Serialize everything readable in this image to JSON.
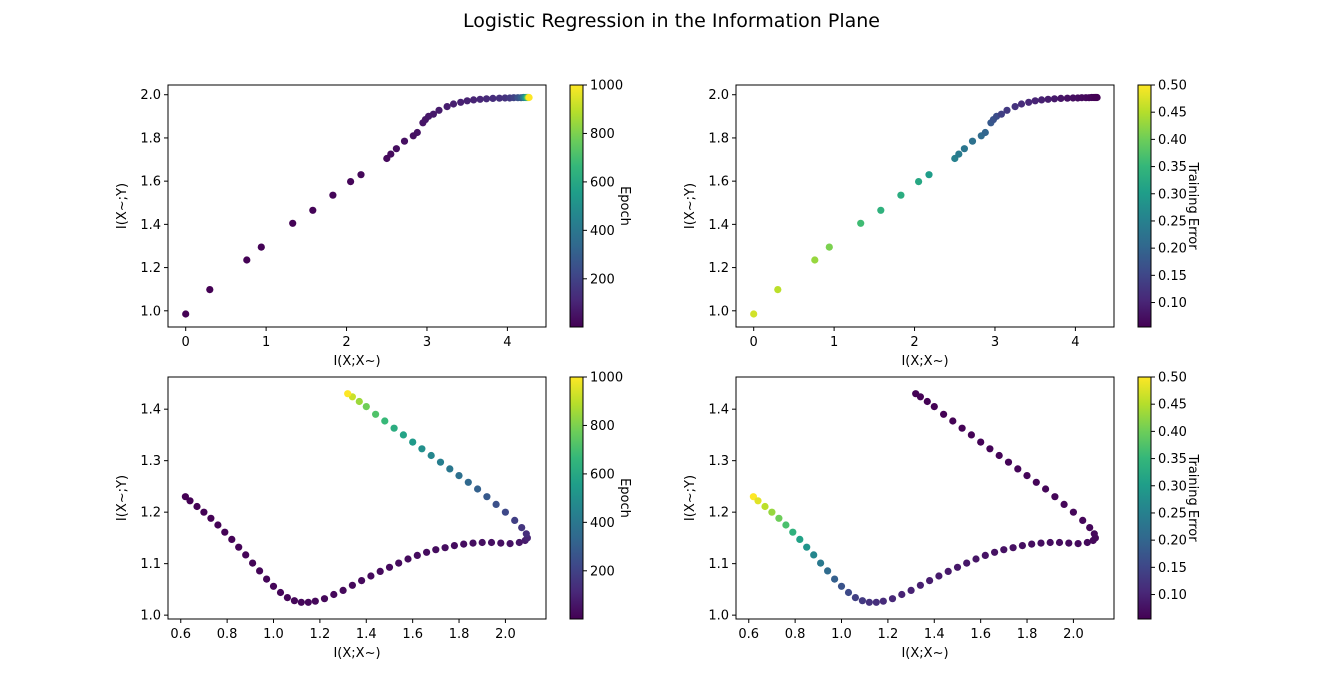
{
  "figure": {
    "title": "Logistic Regression in the Information Plane"
  },
  "colormap": {
    "name": "viridis",
    "stops": [
      "#440154",
      "#482878",
      "#3e4989",
      "#31688e",
      "#26828e",
      "#1f9e89",
      "#35b779",
      "#6ece58",
      "#b5de2b",
      "#fde725"
    ]
  },
  "chart_data": [
    {
      "type": "scatter",
      "xlabel": "I(X;X~)",
      "ylabel": "I(X~;Y)",
      "xlim": [
        -0.22,
        4.48
      ],
      "ylim": [
        0.925,
        2.045
      ],
      "xticks": [
        0,
        1,
        2,
        3,
        4
      ],
      "yticks": [
        1.0,
        1.2,
        1.4,
        1.6,
        1.8,
        2.0
      ],
      "colorbar": {
        "label": "Epoch",
        "range": [
          1,
          1000
        ],
        "ticks": [
          200,
          400,
          600,
          800,
          1000
        ]
      },
      "color_by": "epoch",
      "points": {
        "x": [
          0.0,
          0.3,
          0.76,
          0.94,
          1.33,
          1.58,
          1.83,
          2.05,
          2.18,
          2.5,
          2.55,
          2.62,
          2.72,
          2.83,
          2.88,
          2.95,
          2.98,
          3.02,
          3.08,
          3.15,
          3.25,
          3.33,
          3.42,
          3.5,
          3.58,
          3.66,
          3.74,
          3.82,
          3.9,
          3.97,
          4.03,
          4.08,
          4.13,
          4.17,
          4.2,
          4.22,
          4.24,
          4.25,
          4.26,
          4.27
        ],
        "y": [
          0.985,
          1.098,
          1.235,
          1.295,
          1.405,
          1.465,
          1.535,
          1.598,
          1.63,
          1.705,
          1.725,
          1.75,
          1.785,
          1.81,
          1.825,
          1.87,
          1.885,
          1.9,
          1.91,
          1.928,
          1.945,
          1.957,
          1.965,
          1.972,
          1.976,
          1.979,
          1.981,
          1.983,
          1.984,
          1.985,
          1.985,
          1.986,
          1.986,
          1.986,
          1.987,
          1.987,
          1.987,
          1.987,
          1.987,
          1.987
        ],
        "epoch": [
          1,
          2,
          4,
          6,
          8,
          10,
          13,
          16,
          20,
          25,
          30,
          35,
          40,
          45,
          50,
          55,
          60,
          65,
          70,
          75,
          80,
          85,
          90,
          95,
          100,
          110,
          120,
          130,
          140,
          150,
          170,
          200,
          250,
          300,
          400,
          500,
          600,
          700,
          850,
          1000
        ]
      }
    },
    {
      "type": "scatter",
      "xlabel": "I(X;X~)",
      "ylabel": "I(X~;Y)",
      "xlim": [
        -0.22,
        4.48
      ],
      "ylim": [
        0.925,
        2.045
      ],
      "xticks": [
        0,
        1,
        2,
        3,
        4
      ],
      "yticks": [
        1.0,
        1.2,
        1.4,
        1.6,
        1.8,
        2.0
      ],
      "colorbar": {
        "label": "Training Error",
        "range": [
          0.055,
          0.5
        ],
        "ticks": [
          0.1,
          0.15,
          0.2,
          0.25,
          0.3,
          0.35,
          0.4,
          0.45,
          0.5
        ]
      },
      "color_by": "training_error",
      "points": {
        "x": [
          0.0,
          0.3,
          0.76,
          0.94,
          1.33,
          1.58,
          1.83,
          2.05,
          2.18,
          2.5,
          2.55,
          2.62,
          2.72,
          2.83,
          2.88,
          2.95,
          2.98,
          3.02,
          3.08,
          3.15,
          3.25,
          3.33,
          3.42,
          3.5,
          3.58,
          3.66,
          3.74,
          3.82,
          3.9,
          3.97,
          4.03,
          4.08,
          4.13,
          4.17,
          4.2,
          4.22,
          4.24,
          4.25,
          4.26,
          4.27
        ],
        "y": [
          0.985,
          1.098,
          1.235,
          1.295,
          1.405,
          1.465,
          1.535,
          1.598,
          1.63,
          1.705,
          1.725,
          1.75,
          1.785,
          1.81,
          1.825,
          1.87,
          1.885,
          1.9,
          1.91,
          1.928,
          1.945,
          1.957,
          1.965,
          1.972,
          1.976,
          1.979,
          1.981,
          1.983,
          1.984,
          1.985,
          1.985,
          1.986,
          1.986,
          1.986,
          1.987,
          1.987,
          1.987,
          1.987,
          1.987,
          1.987
        ],
        "training_error": [
          0.47,
          0.455,
          0.43,
          0.41,
          0.36,
          0.34,
          0.33,
          0.32,
          0.3,
          0.25,
          0.24,
          0.23,
          0.22,
          0.21,
          0.2,
          0.18,
          0.17,
          0.16,
          0.14,
          0.13,
          0.12,
          0.11,
          0.105,
          0.1,
          0.095,
          0.09,
          0.085,
          0.08,
          0.075,
          0.072,
          0.07,
          0.068,
          0.066,
          0.064,
          0.062,
          0.06,
          0.059,
          0.058,
          0.057,
          0.056
        ]
      }
    },
    {
      "type": "scatter",
      "xlabel": "I(X;X~)",
      "ylabel": "I(X~;Y)",
      "xlim": [
        0.545,
        2.175
      ],
      "ylim": [
        0.9925,
        1.4625
      ],
      "xticks": [
        0.6,
        0.8,
        1.0,
        1.2,
        1.4,
        1.6,
        1.8,
        2.0
      ],
      "yticks": [
        1.0,
        1.1,
        1.2,
        1.3,
        1.4
      ],
      "colorbar": {
        "label": "Epoch",
        "range": [
          1,
          1000
        ],
        "ticks": [
          200,
          400,
          600,
          800,
          1000
        ]
      },
      "color_by": "epoch",
      "points": {
        "x": [
          0.62,
          0.64,
          0.67,
          0.7,
          0.73,
          0.76,
          0.79,
          0.82,
          0.85,
          0.88,
          0.91,
          0.94,
          0.97,
          1.0,
          1.03,
          1.06,
          1.09,
          1.12,
          1.15,
          1.18,
          1.22,
          1.26,
          1.3,
          1.34,
          1.38,
          1.42,
          1.46,
          1.5,
          1.54,
          1.58,
          1.62,
          1.66,
          1.7,
          1.74,
          1.78,
          1.82,
          1.86,
          1.9,
          1.94,
          1.98,
          2.02,
          2.06,
          2.085,
          2.095,
          2.09,
          2.07,
          2.04,
          2.0,
          1.96,
          1.92,
          1.88,
          1.84,
          1.8,
          1.76,
          1.72,
          1.68,
          1.64,
          1.6,
          1.56,
          1.52,
          1.48,
          1.44,
          1.4,
          1.37,
          1.34,
          1.32
        ],
        "y": [
          1.23,
          1.222,
          1.211,
          1.2,
          1.188,
          1.175,
          1.161,
          1.147,
          1.132,
          1.117,
          1.101,
          1.086,
          1.07,
          1.056,
          1.044,
          1.034,
          1.028,
          1.025,
          1.025,
          1.027,
          1.032,
          1.04,
          1.048,
          1.058,
          1.067,
          1.076,
          1.085,
          1.093,
          1.101,
          1.109,
          1.116,
          1.122,
          1.127,
          1.131,
          1.135,
          1.138,
          1.14,
          1.141,
          1.141,
          1.14,
          1.139,
          1.141,
          1.145,
          1.15,
          1.158,
          1.17,
          1.184,
          1.2,
          1.215,
          1.23,
          1.245,
          1.258,
          1.271,
          1.284,
          1.297,
          1.31,
          1.323,
          1.336,
          1.35,
          1.363,
          1.377,
          1.39,
          1.405,
          1.415,
          1.424,
          1.43
        ],
        "epoch": [
          1,
          2,
          3,
          4,
          5,
          6,
          7,
          8,
          9,
          10,
          11,
          12,
          13,
          14,
          15,
          16,
          17,
          18,
          19,
          20,
          21,
          22,
          23,
          24,
          25,
          26,
          27,
          28,
          29,
          30,
          31,
          32,
          33,
          34,
          35,
          37,
          39,
          41,
          43,
          45,
          50,
          60,
          75,
          100,
          130,
          160,
          190,
          220,
          250,
          280,
          310,
          340,
          370,
          400,
          430,
          460,
          500,
          540,
          580,
          620,
          670,
          720,
          780,
          850,
          920,
          1000
        ]
      }
    },
    {
      "type": "scatter",
      "xlabel": "I(X;X~)",
      "ylabel": "I(X~;Y)",
      "xlim": [
        0.545,
        2.175
      ],
      "ylim": [
        0.9925,
        1.4625
      ],
      "xticks": [
        0.6,
        0.8,
        1.0,
        1.2,
        1.4,
        1.6,
        1.8,
        2.0
      ],
      "yticks": [
        1.0,
        1.1,
        1.2,
        1.3,
        1.4
      ],
      "colorbar": {
        "label": "Training Error",
        "range": [
          0.055,
          0.5
        ],
        "ticks": [
          0.1,
          0.15,
          0.2,
          0.25,
          0.3,
          0.35,
          0.4,
          0.45,
          0.5
        ]
      },
      "color_by": "training_error",
      "points": {
        "x": [
          0.62,
          0.64,
          0.67,
          0.7,
          0.73,
          0.76,
          0.79,
          0.82,
          0.85,
          0.88,
          0.91,
          0.94,
          0.97,
          1.0,
          1.03,
          1.06,
          1.09,
          1.12,
          1.15,
          1.18,
          1.22,
          1.26,
          1.3,
          1.34,
          1.38,
          1.42,
          1.46,
          1.5,
          1.54,
          1.58,
          1.62,
          1.66,
          1.7,
          1.74,
          1.78,
          1.82,
          1.86,
          1.9,
          1.94,
          1.98,
          2.02,
          2.06,
          2.085,
          2.095,
          2.09,
          2.07,
          2.04,
          2.0,
          1.96,
          1.92,
          1.88,
          1.84,
          1.8,
          1.76,
          1.72,
          1.68,
          1.64,
          1.6,
          1.56,
          1.52,
          1.48,
          1.44,
          1.4,
          1.37,
          1.34,
          1.32
        ],
        "y": [
          1.23,
          1.222,
          1.211,
          1.2,
          1.188,
          1.175,
          1.161,
          1.147,
          1.132,
          1.117,
          1.101,
          1.086,
          1.07,
          1.056,
          1.044,
          1.034,
          1.028,
          1.025,
          1.025,
          1.027,
          1.032,
          1.04,
          1.048,
          1.058,
          1.067,
          1.076,
          1.085,
          1.093,
          1.101,
          1.109,
          1.116,
          1.122,
          1.127,
          1.131,
          1.135,
          1.138,
          1.14,
          1.141,
          1.141,
          1.14,
          1.139,
          1.141,
          1.145,
          1.15,
          1.158,
          1.17,
          1.184,
          1.2,
          1.215,
          1.23,
          1.245,
          1.258,
          1.271,
          1.284,
          1.297,
          1.31,
          1.323,
          1.336,
          1.35,
          1.363,
          1.377,
          1.39,
          1.405,
          1.415,
          1.424,
          1.43
        ],
        "training_error": [
          0.5,
          0.48,
          0.455,
          0.43,
          0.4,
          0.37,
          0.34,
          0.31,
          0.285,
          0.26,
          0.235,
          0.21,
          0.19,
          0.17,
          0.155,
          0.14,
          0.13,
          0.12,
          0.115,
          0.11,
          0.105,
          0.1,
          0.097,
          0.094,
          0.091,
          0.088,
          0.086,
          0.084,
          0.082,
          0.08,
          0.078,
          0.076,
          0.075,
          0.074,
          0.073,
          0.072,
          0.071,
          0.07,
          0.069,
          0.068,
          0.067,
          0.066,
          0.065,
          0.064,
          0.064,
          0.063,
          0.063,
          0.062,
          0.062,
          0.061,
          0.061,
          0.06,
          0.06,
          0.06,
          0.059,
          0.059,
          0.059,
          0.058,
          0.058,
          0.058,
          0.057,
          0.057,
          0.057,
          0.056,
          0.056,
          0.056
        ]
      }
    }
  ]
}
